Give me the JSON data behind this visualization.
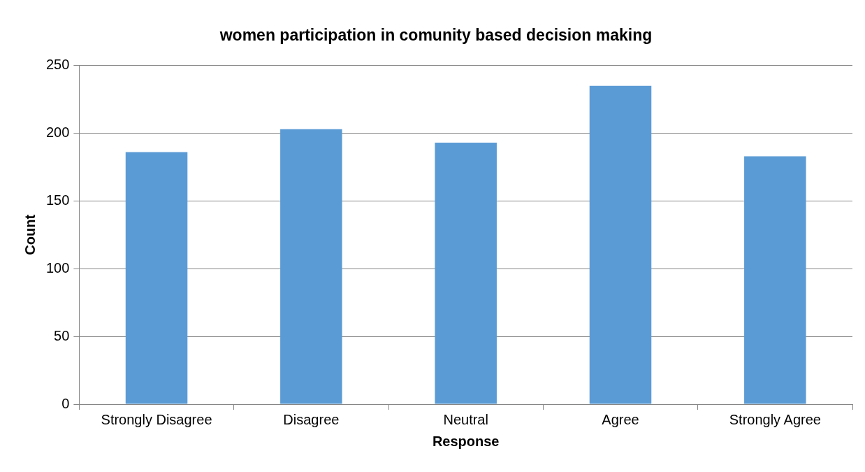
{
  "chart_data": {
    "type": "bar",
    "title": "women participation in comunity based decision making",
    "xlabel": "Response",
    "ylabel": "Count",
    "categories": [
      "Strongly Disagree",
      "Disagree",
      "Neutral",
      "Agree",
      "Strongly Agree"
    ],
    "values": [
      186,
      203,
      193,
      235,
      183
    ],
    "color": "#5b9bd5",
    "ylim": [
      0,
      250
    ],
    "yticks": [
      0,
      50,
      100,
      150,
      200,
      250
    ],
    "grid": "y",
    "legend": false
  }
}
